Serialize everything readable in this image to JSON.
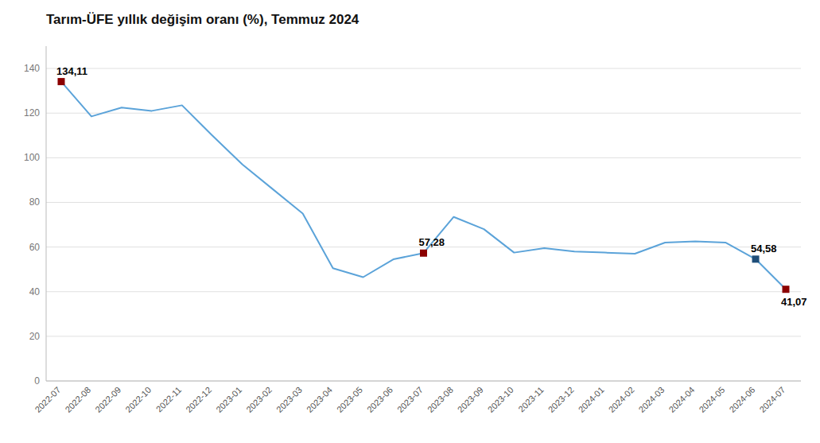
{
  "chart_data": {
    "type": "line",
    "title": "Tarım-ÜFE yıllık değişim oranı (%), Temmuz 2024",
    "categories": [
      "2022-07",
      "2022-08",
      "2022-09",
      "2022-10",
      "2022-11",
      "2022-12",
      "2023-01",
      "2023-02",
      "2023-03",
      "2023-04",
      "2023-05",
      "2023-06",
      "2023-07",
      "2023-08",
      "2023-09",
      "2023-10",
      "2023-11",
      "2023-12",
      "2024-01",
      "2024-02",
      "2024-03",
      "2024-04",
      "2024-05",
      "2024-06",
      "2024-07"
    ],
    "values": [
      134.11,
      118.5,
      122.5,
      121.0,
      123.5,
      110.0,
      97.0,
      86.0,
      75.0,
      50.5,
      46.5,
      54.5,
      57.28,
      73.5,
      68.0,
      57.5,
      59.5,
      58.0,
      57.5,
      57.0,
      62.0,
      62.5,
      62.0,
      54.58,
      41.07
    ],
    "color": "#5ba3d9",
    "ylim": [
      0,
      150
    ],
    "yticks": [
      0,
      20,
      40,
      60,
      80,
      100,
      120,
      140
    ],
    "grid": true,
    "annotations": [
      {
        "text": "134,11",
        "category": "2022-07",
        "value": 134.11,
        "color": "#8b0000"
      },
      {
        "text": "57,28",
        "category": "2023-07",
        "value": 57.28,
        "color": "#8b0000"
      },
      {
        "text": "54,58",
        "category": "2024-06",
        "value": 54.58,
        "color": "#1f4e79"
      },
      {
        "text": "41,07",
        "category": "2024-07",
        "value": 41.07,
        "color": "#8b0000"
      }
    ]
  }
}
